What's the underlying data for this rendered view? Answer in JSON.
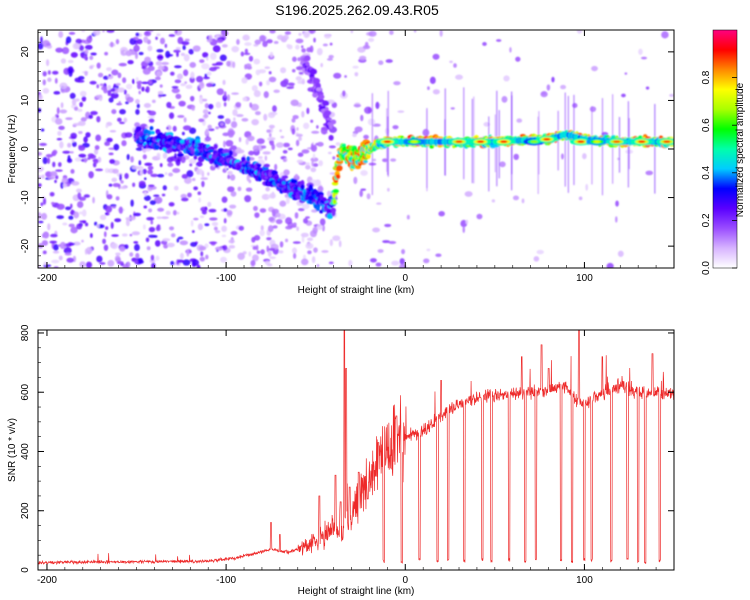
{
  "title": "S196.2025.262.09.43.R05",
  "chart_data": [
    {
      "type": "heatmap",
      "xlabel": "Height of straight line (km)",
      "ylabel": "Frequency (Hz)",
      "xlim": [
        -205,
        150
      ],
      "ylim": [
        -24.5,
        24.5
      ],
      "x_ticks": [
        -200,
        -100,
        0,
        100
      ],
      "y_ticks": [
        -20,
        -10,
        0,
        10,
        20
      ],
      "colorbar": {
        "label": "Normalized spectral amplitude",
        "range": [
          0,
          1
        ],
        "ticks": [
          0.0,
          0.2,
          0.4,
          0.6,
          0.8
        ],
        "tick_labels": [
          "0.0",
          "0.2",
          "0.4",
          "0.6",
          "0.8"
        ],
        "colors": [
          "#ffffff",
          "#d7b4ff",
          "#9a4dff",
          "#5a00ff",
          "#0000ff",
          "#00ccff",
          "#00ffaa",
          "#00ff00",
          "#aaff00",
          "#ffff00",
          "#ff8800",
          "#ff0000",
          "#ff0080"
        ]
      },
      "ridges": [
        {
          "points": [
            [
              -150,
              2.5
            ],
            [
              -120,
              0.5
            ],
            [
              -100,
              -2
            ],
            [
              -80,
              -5
            ],
            [
              -60,
              -8.5
            ],
            [
              -50,
              -10
            ],
            [
              -44,
              -11.5
            ],
            [
              -40,
              -12
            ]
          ],
          "max_amplitude": 0.42
        },
        {
          "points": [
            [
              -57,
              18.5
            ],
            [
              -50,
              13
            ],
            [
              -46,
              9
            ],
            [
              -44,
              7
            ],
            [
              -41,
              4
            ]
          ],
          "max_amplitude": 0.25
        },
        {
          "points": [
            [
              -40,
              -11
            ],
            [
              -38,
              -4
            ],
            [
              -35,
              0
            ],
            [
              -32,
              -1.5
            ],
            [
              -27,
              -2
            ],
            [
              -22,
              -0.5
            ],
            [
              -20,
              0
            ],
            [
              -15,
              1
            ],
            [
              -10,
              1.5
            ],
            [
              0,
              1.5
            ],
            [
              50,
              1.5
            ],
            [
              80,
              2
            ],
            [
              90,
              3
            ],
            [
              100,
              2
            ],
            [
              120,
              1.5
            ],
            [
              150,
              1.5
            ]
          ],
          "max_amplitude": 0.9
        }
      ],
      "peaks": [
        [
          -10,
          1.5,
          0.9
        ],
        [
          5,
          1.5,
          0.7
        ],
        [
          30,
          1.5,
          0.88
        ],
        [
          42,
          1.5,
          0.92
        ],
        [
          55,
          1.5,
          0.92
        ],
        [
          72,
          1.5,
          0.65
        ],
        [
          79,
          2,
          0.9
        ],
        [
          98,
          1.5,
          0.9
        ],
        [
          107,
          1.5,
          0.72
        ],
        [
          118,
          1.5,
          0.86
        ],
        [
          132,
          1.5,
          0.9
        ],
        [
          146,
          1.5,
          0.88
        ]
      ]
    },
    {
      "type": "line",
      "xlabel": "Height of straight line (km)",
      "ylabel": "SNR (10 * v/v)",
      "xlim": [
        -205,
        150
      ],
      "ylim": [
        0,
        810
      ],
      "x_ticks": [
        -200,
        -100,
        0,
        100
      ],
      "y_ticks": [
        0,
        200,
        400,
        600,
        800
      ],
      "color": "#ee2a2a",
      "baseline": [
        [
          -205,
          25
        ],
        [
          -150,
          28
        ],
        [
          -110,
          30
        ],
        [
          -95,
          40
        ],
        [
          -85,
          55
        ],
        [
          -75,
          70
        ],
        [
          -65,
          60
        ],
        [
          -55,
          80
        ],
        [
          -45,
          120
        ],
        [
          -40,
          150
        ],
        [
          -35,
          120
        ],
        [
          -30,
          180
        ],
        [
          -25,
          260
        ],
        [
          -20,
          300
        ],
        [
          -15,
          360
        ],
        [
          -10,
          410
        ],
        [
          0,
          450
        ],
        [
          10,
          470
        ],
        [
          20,
          520
        ],
        [
          30,
          560
        ],
        [
          40,
          580
        ],
        [
          50,
          590
        ],
        [
          60,
          595
        ],
        [
          70,
          600
        ],
        [
          80,
          610
        ],
        [
          90,
          620
        ],
        [
          95,
          580
        ],
        [
          100,
          560
        ],
        [
          110,
          600
        ],
        [
          120,
          620
        ],
        [
          130,
          600
        ],
        [
          150,
          595
        ]
      ],
      "spikes": [
        [
          -75,
          160
        ],
        [
          -70,
          120
        ],
        [
          -48,
          250
        ],
        [
          -39,
          320
        ],
        [
          -36,
          230
        ],
        [
          -34,
          810
        ],
        [
          -33,
          680
        ],
        [
          -31,
          280
        ],
        [
          -26,
          330
        ],
        [
          -21,
          240
        ],
        [
          -15,
          430
        ],
        [
          -5,
          520
        ],
        [
          20,
          640
        ],
        [
          65,
          720
        ],
        [
          76,
          760
        ],
        [
          80,
          680
        ],
        [
          97,
          830
        ],
        [
          110,
          720
        ],
        [
          130,
          735
        ],
        [
          138,
          730
        ]
      ],
      "dropouts": [
        [
          -12,
          25
        ],
        [
          -2,
          20
        ],
        [
          8,
          30
        ],
        [
          18,
          25
        ],
        [
          24,
          28
        ],
        [
          33,
          25
        ],
        [
          43,
          30
        ],
        [
          48,
          25
        ],
        [
          58,
          28
        ],
        [
          67,
          25
        ],
        [
          73,
          30
        ],
        [
          87,
          25
        ],
        [
          93,
          22
        ],
        [
          100,
          30
        ],
        [
          104,
          28
        ],
        [
          115,
          25
        ],
        [
          124,
          30
        ],
        [
          130,
          25
        ],
        [
          134,
          22
        ],
        [
          142,
          28
        ]
      ]
    }
  ]
}
